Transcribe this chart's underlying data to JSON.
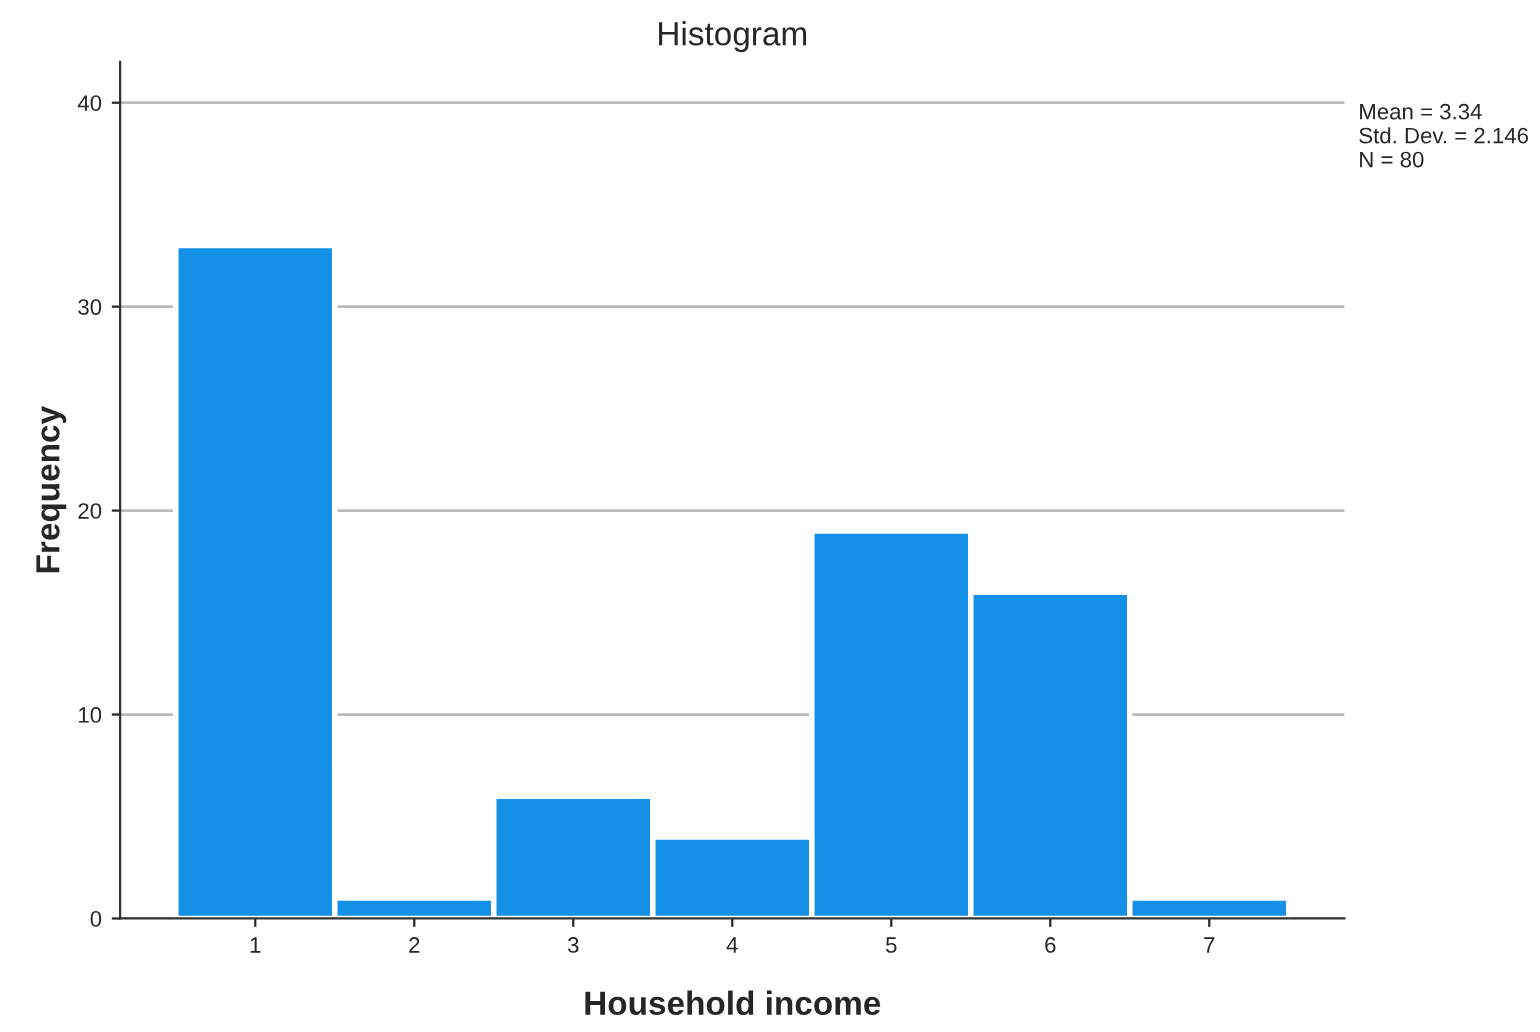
{
  "chart_data": {
    "type": "histogram",
    "title": "Histogram",
    "xlabel": "Household income",
    "ylabel": "Frequency",
    "bins": [
      0.5,
      1.5,
      2.5,
      3.5,
      4.5,
      5.5,
      6.5,
      7.5
    ],
    "values": [
      33,
      1,
      6,
      4,
      19,
      16,
      1
    ],
    "color": "#1490e6",
    "xlim": [
      0.15,
      7.85
    ],
    "xticks": [
      1,
      2,
      3,
      4,
      5,
      6,
      7
    ],
    "ylim": [
      0,
      42
    ],
    "yticks": [
      0,
      10,
      20,
      30,
      40
    ],
    "grid": "y",
    "annotations": [
      "Mean = 3.34\nStd. Dev. = 2.146\nN = 80"
    ]
  }
}
